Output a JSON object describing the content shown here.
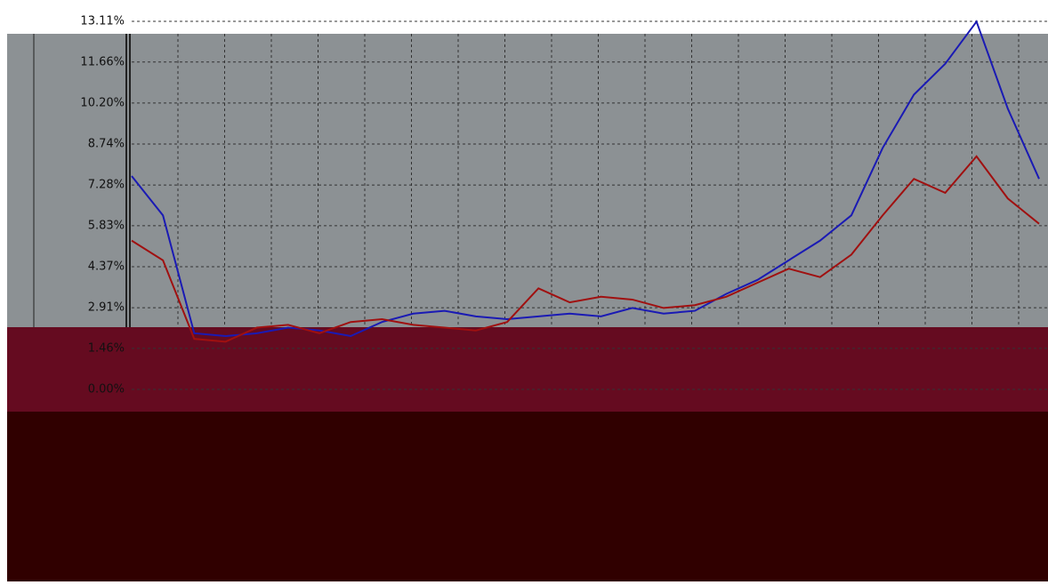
{
  "chart_data": {
    "type": "line",
    "categories": [
      null,
      null,
      null,
      null,
      null,
      null,
      null,
      null,
      null,
      null,
      null,
      null,
      null,
      null,
      null,
      null,
      null,
      null,
      null,
      null,
      null,
      null,
      null,
      null,
      null,
      null,
      null,
      null,
      null,
      null
    ],
    "series": [
      {
        "color": "#1a1ab4",
        "values": [
          7.6,
          6.2,
          2.0,
          1.9,
          2.0,
          2.2,
          2.1,
          1.9,
          2.4,
          2.7,
          2.8,
          2.6,
          2.5,
          2.6,
          2.7,
          2.6,
          2.9,
          2.7,
          2.8,
          3.4,
          3.9,
          4.6,
          5.3,
          6.2,
          8.6,
          10.5,
          11.6,
          13.1,
          10.0,
          7.5
        ]
      },
      {
        "color": "#a01010",
        "values": [
          5.3,
          4.6,
          1.8,
          1.7,
          2.2,
          2.3,
          2.0,
          2.4,
          2.5,
          2.3,
          2.2,
          2.1,
          2.4,
          3.6,
          3.1,
          3.3,
          3.2,
          2.9,
          3.0,
          3.3,
          3.8,
          4.3,
          4.0,
          4.8,
          6.2,
          7.5,
          7.0,
          8.3,
          6.8,
          5.9
        ]
      }
    ],
    "ylim": [
      0,
      13.11
    ],
    "yticks": [
      {
        "value": 0,
        "label": "0.00%"
      },
      {
        "value": 1.46,
        "label": "1.46%"
      },
      {
        "value": 2.91,
        "label": "2.91%"
      },
      {
        "value": 4.37,
        "label": "4.37%"
      },
      {
        "value": 5.83,
        "label": "5.83%"
      },
      {
        "value": 7.28,
        "label": "7.28%"
      },
      {
        "value": 8.74,
        "label": "8.74%"
      },
      {
        "value": 10.2,
        "label": "10.20%"
      },
      {
        "value": 11.66,
        "label": "11.66%"
      },
      {
        "value": 13.11,
        "label": "13.11%"
      }
    ],
    "grid": true
  }
}
